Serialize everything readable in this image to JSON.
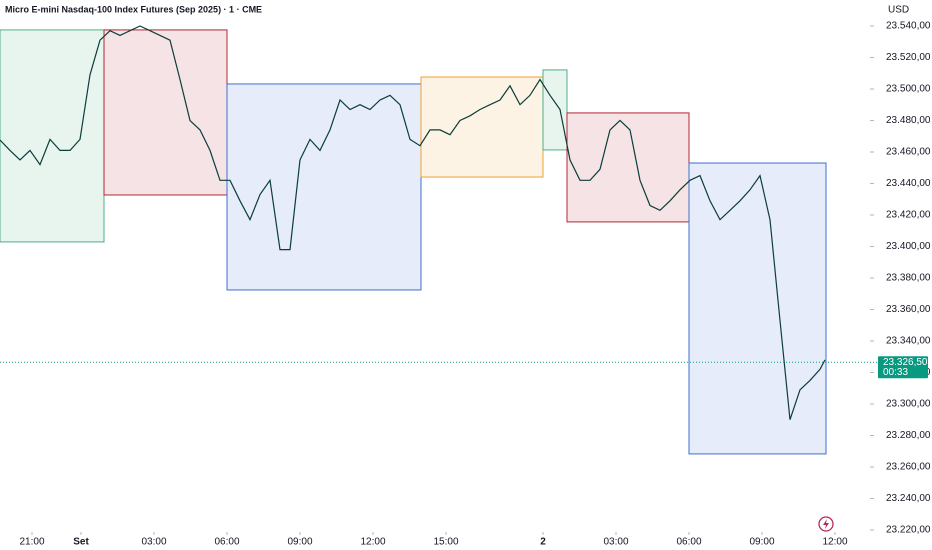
{
  "chart_data": {
    "type": "line",
    "title": "Micro E-mini Nasdaq-100 Index Futures (Sep 2025) · 1 · CME",
    "currency": "USD",
    "x": [
      0,
      2,
      4,
      6,
      8,
      10,
      12,
      14,
      16,
      18,
      20,
      22,
      24,
      26,
      28,
      30,
      32,
      34,
      36,
      38,
      40,
      42,
      44,
      46,
      48,
      50,
      52,
      54,
      56,
      58,
      60,
      62,
      64,
      66,
      68,
      70,
      72,
      74,
      76,
      78,
      80,
      82,
      84,
      86,
      88,
      90,
      92,
      94,
      96,
      98,
      100,
      102,
      104,
      106,
      108,
      110,
      112,
      114,
      116,
      118,
      120,
      122,
      124,
      126,
      128,
      130,
      132,
      134,
      136,
      138,
      140,
      142,
      144,
      146,
      148,
      150,
      152,
      154,
      156,
      158,
      160,
      162,
      164,
      165
    ],
    "series": [
      {
        "color": "#0b3d3a",
        "values": [
          23467.6,
          23461,
          23455,
          23461,
          23452,
          23468,
          23461,
          23461,
          23468,
          23509,
          23531,
          23537,
          23534,
          23537,
          23540,
          23537,
          23534,
          23531,
          23506,
          23480,
          23474,
          23461,
          23442,
          23442,
          23429,
          23417,
          23433,
          23442,
          23398,
          23398,
          23455,
          23468,
          23461,
          23474,
          23493,
          23487,
          23490,
          23487,
          23493,
          23496,
          23490,
          23468,
          23464,
          23474,
          23474,
          23471,
          23480,
          23483,
          23487,
          23490,
          23493,
          23502,
          23490,
          23496,
          23506,
          23496,
          23487,
          23455,
          23442,
          23442,
          23449,
          23474,
          23480,
          23474,
          23442,
          23426,
          23423,
          23429,
          23436,
          23442,
          23445,
          23429,
          23417,
          23423,
          23429,
          23436,
          23445,
          23417,
          23353,
          23290,
          23309,
          23315,
          23322,
          23328
        ]
      }
    ],
    "boxes": [
      {
        "x": [
          0,
          20.8
        ],
        "range": [
          23402.9,
          23537.5
        ],
        "color": "#4caf87"
      },
      {
        "x": [
          20.8,
          45.4
        ],
        "range": [
          23432.7,
          23537.5
        ],
        "color": "#b22833"
      },
      {
        "x": [
          45.4,
          84.2
        ],
        "range": [
          23372.4,
          23503.2
        ],
        "color": "#3d6fd1"
      },
      {
        "x": [
          84.2,
          108.6
        ],
        "range": [
          23444.1,
          23507.6
        ],
        "color": "#f0a030"
      },
      {
        "x": [
          108.6,
          113.4
        ],
        "range": [
          23461.3,
          23512.1
        ],
        "color": "#4caf87"
      },
      {
        "x": [
          113.4,
          137.8
        ],
        "range": [
          23415.6,
          23484.8
        ],
        "color": "#b22833"
      },
      {
        "x": [
          137.8,
          165.2
        ],
        "range": [
          23268.3,
          23453.0
        ],
        "color": "#3d6fd1"
      }
    ],
    "last_price": {
      "value": 23326.5,
      "label": "23.326,50"
    },
    "countdown": "00:33",
    "xlim": [
      0,
      174
    ],
    "ylim": [
      23220,
      23556.5
    ],
    "xticks": [
      {
        "value": 6.4,
        "label": "21:00"
      },
      {
        "value": 16.2,
        "label": "Set"
      },
      {
        "value": 30.8,
        "label": "03:00"
      },
      {
        "value": 45.4,
        "label": "06:00"
      },
      {
        "value": 60,
        "label": "09:00"
      },
      {
        "value": 74.6,
        "label": "12:00"
      },
      {
        "value": 89.2,
        "label": "15:00"
      },
      {
        "value": 108.6,
        "label": "2"
      },
      {
        "value": 123.2,
        "label": "03:00"
      },
      {
        "value": 137.8,
        "label": "06:00"
      },
      {
        "value": 152.4,
        "label": "09:00"
      },
      {
        "value": 167,
        "label": "12:00"
      }
    ],
    "yticks": [
      {
        "value": 23220,
        "label": "23.220,00"
      },
      {
        "value": 23240,
        "label": "23.240,00"
      },
      {
        "value": 23260,
        "label": "23.260,00"
      },
      {
        "value": 23280,
        "label": "23.280,00"
      },
      {
        "value": 23300,
        "label": "23.300,00"
      },
      {
        "value": 23320,
        "label": "23.320,00"
      },
      {
        "value": 23340,
        "label": "23.340,00"
      },
      {
        "value": 23360,
        "label": "23.360,00"
      },
      {
        "value": 23380,
        "label": "23.380,00"
      },
      {
        "value": 23400,
        "label": "23.400,00"
      },
      {
        "value": 23420,
        "label": "23.420,00"
      },
      {
        "value": 23440,
        "label": "23.440,00"
      },
      {
        "value": 23460,
        "label": "23.460,00"
      },
      {
        "value": 23480,
        "label": "23.480,00"
      },
      {
        "value": 23500,
        "label": "23.500,00"
      },
      {
        "value": 23520,
        "label": "23.520,00"
      },
      {
        "value": 23540,
        "label": "23.540,00"
      }
    ]
  }
}
